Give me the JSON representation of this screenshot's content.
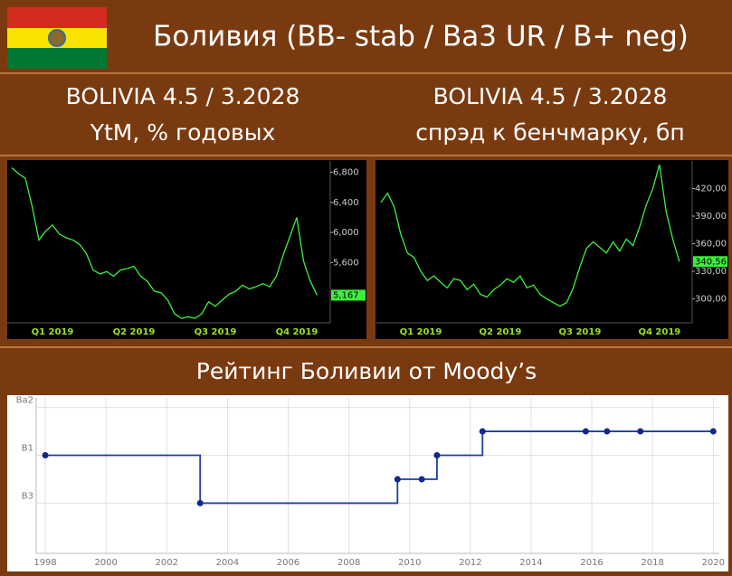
{
  "header": {
    "title": "Боливия (BB- stab / Ba3 UR / B+ neg)"
  },
  "chart_data": [
    {
      "type": "line",
      "title": "BOLIVIA 4.5 / 3.2028",
      "subtitle": "YtM, % годовых",
      "categories": [
        null,
        null,
        null,
        null,
        null,
        null,
        "Q1 2019",
        null,
        null,
        null,
        null,
        null,
        null,
        null,
        null,
        null,
        null,
        null,
        "Q2 2019",
        null,
        null,
        null,
        null,
        null,
        null,
        null,
        null,
        null,
        null,
        null,
        "Q3 2019",
        null,
        null,
        null,
        null,
        null,
        null,
        null,
        null,
        null,
        null,
        null,
        "Q4 2019",
        null,
        null,
        null
      ],
      "series": [
        {
          "color": "#3cf03c",
          "values": [
            6.86,
            6.78,
            6.72,
            6.35,
            5.9,
            6.02,
            6.1,
            5.98,
            5.93,
            5.9,
            5.84,
            5.72,
            5.5,
            5.45,
            5.48,
            5.42,
            5.5,
            5.52,
            5.55,
            5.42,
            5.35,
            5.22,
            5.2,
            5.1,
            4.92,
            4.86,
            4.88,
            4.86,
            4.92,
            5.08,
            5.02,
            5.1,
            5.18,
            5.22,
            5.3,
            5.25,
            5.28,
            5.32,
            5.28,
            5.42,
            5.7,
            5.95,
            6.2,
            5.62,
            5.35,
            5.167
          ],
          "value_labels": [
            null,
            null,
            null,
            null,
            null,
            null,
            null,
            null,
            null,
            null,
            null,
            null,
            null,
            null,
            null,
            null,
            null,
            null,
            null,
            null,
            null,
            null,
            null,
            null,
            null,
            null,
            null,
            null,
            null,
            null,
            null,
            null,
            null,
            null,
            null,
            null,
            null,
            null,
            null,
            null,
            null,
            null,
            null,
            null,
            null,
            "5,167"
          ]
        }
      ],
      "ylim": [
        4.8,
        6.95
      ],
      "yticks": [
        {
          "value": 5.6,
          "label": "5,600"
        },
        {
          "value": 6.0,
          "label": "6,000"
        },
        {
          "value": 6.4,
          "label": "6,400"
        },
        {
          "value": 6.8,
          "label": "6,800"
        }
      ]
    },
    {
      "type": "line",
      "title": "BOLIVIA 4.5 / 3.2028",
      "subtitle": "спрэд к бенчмарку, бп",
      "categories": [
        null,
        null,
        null,
        null,
        null,
        null,
        "Q1 2019",
        null,
        null,
        null,
        null,
        null,
        null,
        null,
        null,
        null,
        null,
        null,
        "Q2 2019",
        null,
        null,
        null,
        null,
        null,
        null,
        null,
        null,
        null,
        null,
        null,
        "Q3 2019",
        null,
        null,
        null,
        null,
        null,
        null,
        null,
        null,
        null,
        null,
        null,
        "Q4 2019",
        null,
        null,
        null
      ],
      "series": [
        {
          "color": "#3cf03c",
          "values": [
            405,
            415,
            400,
            370,
            350,
            345,
            330,
            320,
            325,
            318,
            312,
            322,
            320,
            310,
            316,
            305,
            302,
            310,
            315,
            322,
            318,
            325,
            312,
            315,
            305,
            300,
            296,
            292,
            296,
            312,
            335,
            355,
            362,
            356,
            350,
            362,
            352,
            365,
            358,
            378,
            402,
            420,
            446,
            395,
            365,
            340.56
          ],
          "value_labels": [
            null,
            null,
            null,
            null,
            null,
            null,
            null,
            null,
            null,
            null,
            null,
            null,
            null,
            null,
            null,
            null,
            null,
            null,
            null,
            null,
            null,
            null,
            null,
            null,
            null,
            null,
            null,
            null,
            null,
            null,
            null,
            null,
            null,
            null,
            null,
            null,
            null,
            null,
            null,
            null,
            null,
            null,
            null,
            null,
            null,
            "340,56"
          ]
        }
      ],
      "ylim": [
        274,
        450
      ],
      "yticks": [
        {
          "value": 300,
          "label": "300,00"
        },
        {
          "value": 330,
          "label": "330,00"
        },
        {
          "value": 360,
          "label": "360,00"
        },
        {
          "value": 390,
          "label": "390,00"
        },
        {
          "value": 420,
          "label": "420,00"
        }
      ]
    },
    {
      "type": "step",
      "title": "Рейтинг Боливии от Moody’s",
      "x": [
        1998,
        2003.1,
        2009.6,
        2010.4,
        2010.9,
        2012.4,
        2015.8,
        2016.5,
        2017.6,
        2020
      ],
      "series": [
        {
          "color": "#1f3f9c",
          "values": [
            3,
            1,
            2,
            2,
            3,
            4,
            4,
            4,
            4,
            4
          ]
        }
      ],
      "xlim": [
        1997.7,
        2020.2
      ],
      "xticks": [
        1998,
        2000,
        2002,
        2004,
        2006,
        2008,
        2010,
        2012,
        2014,
        2016,
        2018,
        2020
      ],
      "ylim": [
        -1.1,
        5.4
      ],
      "yticks": [
        {
          "value": 1,
          "label": "B3"
        },
        {
          "value": 3,
          "label": "B1"
        },
        {
          "value": 5,
          "label": "Ba2"
        }
      ],
      "grid": true
    }
  ]
}
